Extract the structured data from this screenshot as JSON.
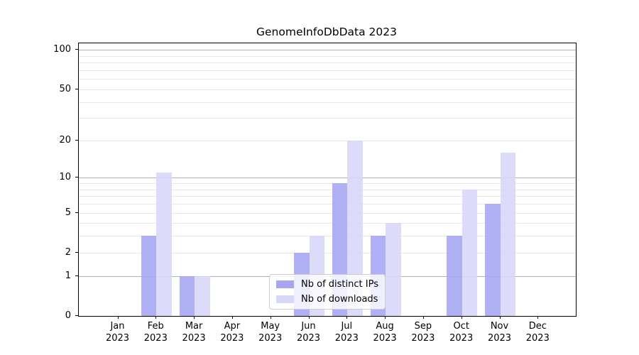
{
  "chart_data": {
    "type": "bar",
    "title": "GenomeInfoDbData 2023",
    "categories": [
      "Jan",
      "Feb",
      "Mar",
      "Apr",
      "May",
      "Jun",
      "Jul",
      "Aug",
      "Sep",
      "Oct",
      "Nov",
      "Dec"
    ],
    "category_year_label": "2023",
    "series": [
      {
        "name": "Nb of distinct IPs",
        "color": "#a5a5f3",
        "values": [
          0,
          3,
          1,
          0,
          0,
          2,
          9,
          3,
          0,
          3,
          6,
          0
        ]
      },
      {
        "name": "Nb of downloads",
        "color": "#d7d7f9",
        "values": [
          0,
          11,
          1,
          0,
          0,
          3,
          20,
          4,
          0,
          8,
          16,
          0
        ]
      }
    ],
    "y_axis": {
      "scale": "log10(1+x)",
      "tick_labels": [
        "0",
        "1",
        "2",
        "5",
        "10",
        "20",
        "50",
        "100"
      ],
      "tick_values": [
        0,
        1,
        2,
        5,
        10,
        20,
        50,
        100
      ],
      "major_gridlines": [
        1,
        10,
        100
      ],
      "minor_gridlines": [
        2,
        3,
        4,
        5,
        6,
        7,
        8,
        9,
        20,
        30,
        40,
        50,
        60,
        70,
        80,
        90
      ],
      "ylim": [
        0,
        112
      ]
    },
    "legend": {
      "position": "lower center",
      "entries": [
        "Nb of distinct IPs",
        "Nb of downloads"
      ]
    },
    "grid": "horizontal major and minor",
    "colors": {
      "major_grid": "#b0b0b0",
      "minor_grid": "#e8e8e8",
      "spine": "#000000"
    }
  }
}
